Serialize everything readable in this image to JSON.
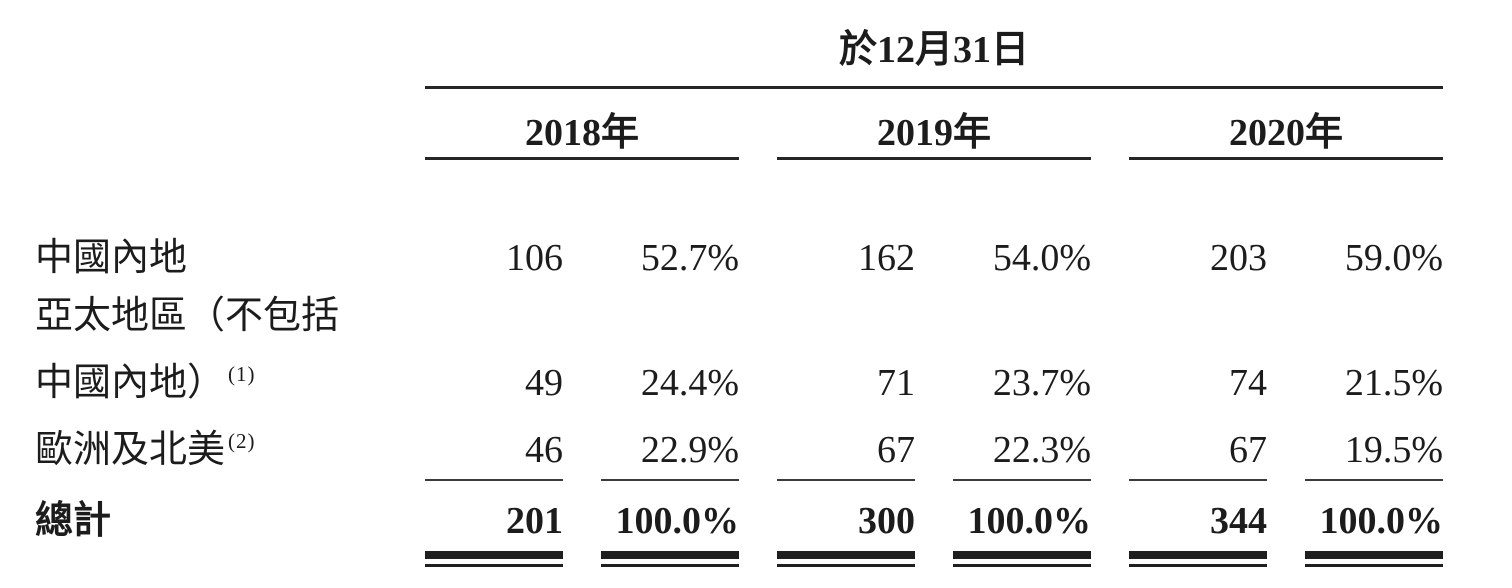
{
  "table": {
    "date_header": "於12月31日",
    "year_headers": [
      {
        "label": "2018年"
      },
      {
        "label": "2019年"
      },
      {
        "label": "2020年"
      }
    ],
    "rows": [
      {
        "label": "中國內地",
        "footnote": "",
        "values": [
          "106",
          "52.7%",
          "162",
          "54.0%",
          "203",
          "59.0%"
        ]
      },
      {
        "label": "亞太地區（不包括",
        "footnote": "",
        "values": [
          "",
          "",
          "",
          "",
          "",
          ""
        ]
      },
      {
        "label": "中國內地）",
        "footnote": "(1)",
        "values": [
          "49",
          "24.4%",
          "71",
          "23.7%",
          "74",
          "21.5%"
        ]
      },
      {
        "label": "歐洲及北美",
        "footnote": "(2)",
        "values": [
          "46",
          "22.9%",
          "67",
          "22.3%",
          "67",
          "19.5%"
        ]
      }
    ],
    "total": {
      "label": "總計",
      "values": [
        "201",
        "100.0%",
        "300",
        "100.0%",
        "344",
        "100.0%"
      ]
    },
    "colors": {
      "text": "#1c1c1c",
      "rule": "#262626",
      "background": "#ffffff"
    }
  }
}
